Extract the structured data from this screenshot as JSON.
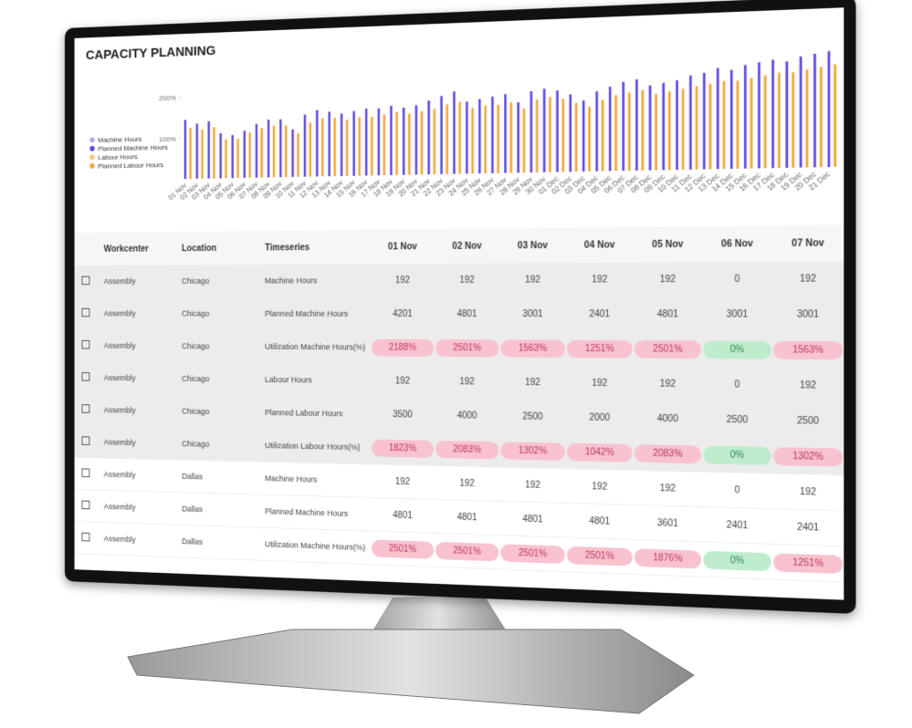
{
  "title": "CAPACITY PLANNING",
  "chart_data": {
    "type": "bar",
    "categories": [
      "01 Nov",
      "02 Nov",
      "03 Nov",
      "04 Nov",
      "05 Nov",
      "06 Nov",
      "07 Nov",
      "08 Nov",
      "09 Nov",
      "10 Nov",
      "11 Nov",
      "12 Nov",
      "13 Nov",
      "14 Nov",
      "15 Nov",
      "16 Nov",
      "17 Nov",
      "18 Nov",
      "19 Nov",
      "20 Nov",
      "21 Nov",
      "22 Nov",
      "23 Nov",
      "24 Nov",
      "25 Nov",
      "26 Nov",
      "27 Nov",
      "28 Nov",
      "29 Nov",
      "30 Nov",
      "01 Dec",
      "02 Dec",
      "03 Dec",
      "04 Dec",
      "05 Dec",
      "06 Dec",
      "07 Dec",
      "08 Dec",
      "09 Dec",
      "10 Dec",
      "11 Dec",
      "12 Dec",
      "13 Dec",
      "14 Dec",
      "15 Dec",
      "16 Dec",
      "17 Dec",
      "18 Dec",
      "19 Dec",
      "20 Dec",
      "21 Dec"
    ],
    "series": [
      {
        "name": "Machine Hours",
        "color": "#b3a9ee",
        "values": [
          0,
          0,
          0,
          0,
          0,
          0,
          0,
          0,
          0,
          0,
          0,
          0,
          0,
          0,
          0,
          0,
          0,
          0,
          0,
          0,
          0,
          0,
          0,
          0,
          0,
          0,
          0,
          0,
          0,
          0,
          0,
          0,
          0,
          0,
          0,
          0,
          0,
          0,
          0,
          0,
          0,
          0,
          0,
          0,
          0,
          0,
          0,
          0,
          0,
          0,
          0
        ]
      },
      {
        "name": "Planned Machine Hours",
        "color": "#5b45e0",
        "values": [
          145,
          135,
          140,
          110,
          105,
          115,
          130,
          140,
          140,
          115,
          150,
          160,
          155,
          150,
          155,
          160,
          160,
          165,
          160,
          165,
          175,
          185,
          195,
          170,
          175,
          180,
          185,
          165,
          190,
          195,
          190,
          180,
          165,
          185,
          195,
          205,
          210,
          195,
          200,
          205,
          215,
          220,
          230,
          225,
          235,
          240,
          245,
          240,
          250,
          255,
          260
        ]
      },
      {
        "name": "Labour Hours",
        "color": "#f6c77e",
        "values": [
          0,
          0,
          0,
          0,
          0,
          0,
          0,
          0,
          0,
          0,
          0,
          0,
          0,
          0,
          0,
          0,
          0,
          0,
          0,
          0,
          0,
          0,
          0,
          0,
          0,
          0,
          0,
          0,
          0,
          0,
          0,
          0,
          0,
          0,
          0,
          0,
          0,
          0,
          0,
          0,
          0,
          0,
          0,
          0,
          0,
          0,
          0,
          0,
          0,
          0,
          0
        ]
      },
      {
        "name": "Planned Labour Hours",
        "color": "#f3a531",
        "values": [
          125,
          120,
          125,
          95,
          95,
          110,
          120,
          125,
          125,
          105,
          130,
          140,
          140,
          135,
          140,
          140,
          145,
          150,
          145,
          150,
          155,
          165,
          170,
          155,
          160,
          160,
          165,
          150,
          170,
          175,
          170,
          160,
          150,
          165,
          175,
          180,
          185,
          175,
          180,
          185,
          190,
          195,
          200,
          200,
          205,
          210,
          215,
          215,
          220,
          225,
          230
        ]
      }
    ],
    "ylim": [
      0,
      270
    ],
    "yticks": [
      {
        "value": 100,
        "label": "100%"
      },
      {
        "value": 200,
        "label": "200%"
      }
    ],
    "legend": "left"
  },
  "table": {
    "columns": [
      "Workcenter",
      "Location",
      "Timeseries"
    ],
    "dates": [
      "01 Nov",
      "02 Nov",
      "03 Nov",
      "04 Nov",
      "05 Nov",
      "06 Nov",
      "07 Nov"
    ],
    "rows": [
      [
        "Assembly",
        "Chicago",
        "Machine Hours",
        "192",
        "192",
        "192",
        "192",
        "192",
        "0",
        "192"
      ],
      [
        "Assembly",
        "Chicago",
        "Planned Machine Hours",
        "4201",
        "4801",
        "3001",
        "2401",
        "4801",
        "3001",
        "3001"
      ],
      [
        "Assembly",
        "Chicago",
        "Utilization Machine Hours(%)",
        "2188%",
        "2501%",
        "1563%",
        "1251%",
        "2501%",
        "0%",
        "1563%"
      ],
      [
        "Assembly",
        "Chicago",
        "Labour Hours",
        "192",
        "192",
        "192",
        "192",
        "192",
        "0",
        "192"
      ],
      [
        "Assembly",
        "Chicago",
        "Planned Labour Hours",
        "3500",
        "4000",
        "2500",
        "2000",
        "4000",
        "2500",
        "2500"
      ],
      [
        "Assembly",
        "Chicago",
        "Utilization Labour Hours(%)",
        "1823%",
        "2083%",
        "1302%",
        "1042%",
        "2083%",
        "0%",
        "1302%"
      ],
      [
        "Assembly",
        "Dallas",
        "Machine Hours",
        "192",
        "192",
        "192",
        "192",
        "192",
        "0",
        "192"
      ],
      [
        "Assembly",
        "Dallas",
        "Planned Machine Hours",
        "4801",
        "4801",
        "4801",
        "4801",
        "3601",
        "2401",
        "2401"
      ],
      [
        "Assembly",
        "Dallas",
        "Utilization Machine Hours(%)",
        "2501%",
        "2501%",
        "2501%",
        "2501%",
        "1876%",
        "0%",
        "1251%"
      ]
    ]
  }
}
